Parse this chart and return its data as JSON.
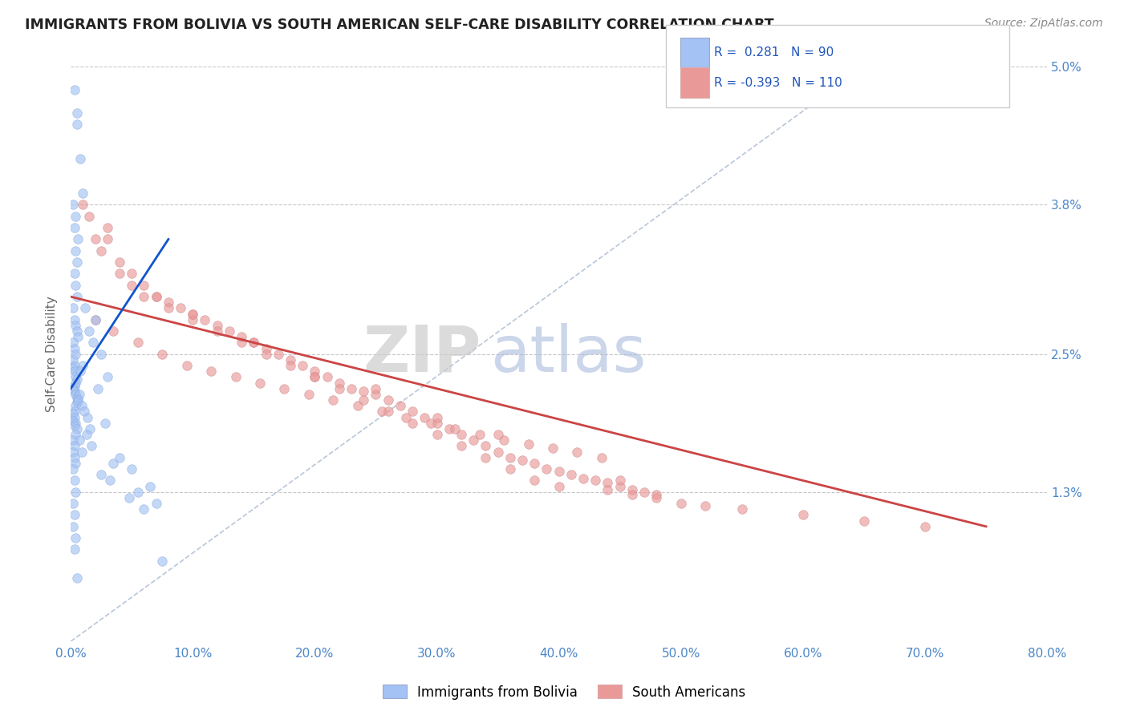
{
  "title": "IMMIGRANTS FROM BOLIVIA VS SOUTH AMERICAN SELF-CARE DISABILITY CORRELATION CHART",
  "source": "Source: ZipAtlas.com",
  "ylabel": "Self-Care Disability",
  "xlim": [
    0.0,
    80.0
  ],
  "ylim": [
    0.0,
    5.0
  ],
  "yticks": [
    0.0,
    1.3,
    2.5,
    3.8,
    5.0
  ],
  "ytick_labels": [
    "",
    "1.3%",
    "2.5%",
    "3.8%",
    "5.0%"
  ],
  "xticks": [
    0.0,
    10.0,
    20.0,
    30.0,
    40.0,
    50.0,
    60.0,
    70.0,
    80.0
  ],
  "xtick_labels": [
    "0.0%",
    "10.0%",
    "20.0%",
    "30.0%",
    "40.0%",
    "50.0%",
    "60.0%",
    "70.0%",
    "80.0%"
  ],
  "blue_R": 0.281,
  "blue_N": 90,
  "pink_R": -0.393,
  "pink_N": 110,
  "blue_color": "#a4c2f4",
  "pink_color": "#ea9999",
  "blue_line_color": "#1155cc",
  "pink_line_color": "#cc4444",
  "legend_blue_label": "Immigrants from Bolivia",
  "legend_pink_label": "South Americans",
  "watermark_zip": "ZIP",
  "watermark_atlas": "atlas",
  "background_color": "#ffffff",
  "grid_color": "#c8c8c8",
  "title_color": "#212121",
  "axis_label_color": "#4a86c8",
  "blue_scatter_x": [
    0.3,
    0.5,
    0.5,
    0.8,
    1.0,
    0.2,
    0.4,
    0.3,
    0.6,
    0.4,
    0.5,
    0.3,
    0.4,
    0.5,
    0.2,
    0.3,
    0.4,
    0.5,
    0.6,
    0.2,
    0.3,
    0.4,
    0.2,
    0.3,
    0.2,
    0.3,
    0.4,
    0.5,
    0.4,
    0.3,
    0.2,
    0.3,
    0.4,
    0.5,
    0.6,
    0.5,
    0.4,
    0.3,
    0.2,
    0.3,
    0.2,
    0.4,
    0.3,
    0.5,
    0.4,
    0.2,
    0.3,
    0.2,
    0.3,
    0.4,
    1.2,
    2.0,
    1.5,
    1.8,
    2.5,
    1.0,
    0.8,
    3.0,
    2.2,
    0.7,
    0.6,
    0.9,
    1.1,
    1.4,
    2.8,
    1.6,
    1.3,
    0.7,
    1.7,
    0.9,
    4.0,
    3.5,
    5.0,
    2.5,
    3.2,
    6.5,
    5.5,
    4.8,
    7.0,
    6.0,
    0.2,
    0.3,
    0.4,
    0.2,
    0.3,
    0.2,
    0.4,
    0.3,
    7.5,
    0.5
  ],
  "blue_scatter_y": [
    4.8,
    4.6,
    4.5,
    4.2,
    3.9,
    3.8,
    3.7,
    3.6,
    3.5,
    3.4,
    3.3,
    3.2,
    3.1,
    3.0,
    2.9,
    2.8,
    2.75,
    2.7,
    2.65,
    2.6,
    2.55,
    2.5,
    2.45,
    2.4,
    2.38,
    2.35,
    2.3,
    2.28,
    2.25,
    2.22,
    2.2,
    2.18,
    2.15,
    2.12,
    2.1,
    2.08,
    2.05,
    2.0,
    1.98,
    1.95,
    1.92,
    1.9,
    1.88,
    1.85,
    1.8,
    1.75,
    1.7,
    1.65,
    1.6,
    1.55,
    2.9,
    2.8,
    2.7,
    2.6,
    2.5,
    2.4,
    2.35,
    2.3,
    2.2,
    2.15,
    2.1,
    2.05,
    2.0,
    1.95,
    1.9,
    1.85,
    1.8,
    1.75,
    1.7,
    1.65,
    1.6,
    1.55,
    1.5,
    1.45,
    1.4,
    1.35,
    1.3,
    1.25,
    1.2,
    1.15,
    1.5,
    1.4,
    1.3,
    1.2,
    1.1,
    1.0,
    0.9,
    0.8,
    0.7,
    0.55
  ],
  "pink_scatter_x": [
    1.0,
    1.5,
    2.0,
    2.5,
    3.0,
    4.0,
    5.0,
    6.0,
    7.0,
    8.0,
    9.0,
    10.0,
    11.0,
    12.0,
    13.0,
    14.0,
    15.0,
    16.0,
    17.0,
    18.0,
    19.0,
    20.0,
    21.0,
    22.0,
    23.0,
    24.0,
    25.0,
    26.0,
    27.0,
    28.0,
    29.0,
    30.0,
    31.0,
    32.0,
    33.0,
    34.0,
    35.0,
    36.0,
    37.0,
    38.0,
    39.0,
    40.0,
    41.0,
    42.0,
    43.0,
    44.0,
    45.0,
    46.0,
    47.0,
    48.0,
    2.0,
    3.5,
    5.5,
    7.5,
    9.5,
    11.5,
    13.5,
    15.5,
    17.5,
    19.5,
    21.5,
    23.5,
    25.5,
    27.5,
    29.5,
    31.5,
    33.5,
    35.5,
    37.5,
    39.5,
    41.5,
    43.5,
    4.0,
    6.0,
    8.0,
    10.0,
    12.0,
    14.0,
    16.0,
    18.0,
    20.0,
    22.0,
    24.0,
    26.0,
    28.0,
    30.0,
    32.0,
    34.0,
    36.0,
    38.0,
    40.0,
    50.0,
    55.0,
    60.0,
    65.0,
    70.0,
    48.0,
    52.0,
    44.0,
    46.0,
    3.0,
    7.0,
    15.0,
    25.0,
    35.0,
    45.0,
    30.0,
    20.0,
    10.0,
    5.0
  ],
  "pink_scatter_y": [
    3.8,
    3.7,
    3.5,
    3.4,
    3.5,
    3.3,
    3.2,
    3.1,
    3.0,
    2.95,
    2.9,
    2.85,
    2.8,
    2.75,
    2.7,
    2.65,
    2.6,
    2.55,
    2.5,
    2.45,
    2.4,
    2.35,
    2.3,
    2.25,
    2.2,
    2.18,
    2.15,
    2.1,
    2.05,
    2.0,
    1.95,
    1.9,
    1.85,
    1.8,
    1.75,
    1.7,
    1.65,
    1.6,
    1.58,
    1.55,
    1.5,
    1.48,
    1.45,
    1.42,
    1.4,
    1.38,
    1.35,
    1.32,
    1.3,
    1.28,
    2.8,
    2.7,
    2.6,
    2.5,
    2.4,
    2.35,
    2.3,
    2.25,
    2.2,
    2.15,
    2.1,
    2.05,
    2.0,
    1.95,
    1.9,
    1.85,
    1.8,
    1.75,
    1.72,
    1.68,
    1.65,
    1.6,
    3.2,
    3.0,
    2.9,
    2.8,
    2.7,
    2.6,
    2.5,
    2.4,
    2.3,
    2.2,
    2.1,
    2.0,
    1.9,
    1.8,
    1.7,
    1.6,
    1.5,
    1.4,
    1.35,
    1.2,
    1.15,
    1.1,
    1.05,
    1.0,
    1.25,
    1.18,
    1.32,
    1.28,
    3.6,
    3.0,
    2.6,
    2.2,
    1.8,
    1.4,
    1.95,
    2.3,
    2.85,
    3.1
  ],
  "blue_trendline_x": [
    0.0,
    8.0
  ],
  "blue_trendline_y": [
    2.2,
    3.5
  ],
  "pink_trendline_x": [
    0.0,
    75.0
  ],
  "pink_trendline_y": [
    3.0,
    1.0
  ],
  "diag_line_x": [
    0.0,
    65.0
  ],
  "diag_line_y": [
    0.0,
    5.0
  ]
}
